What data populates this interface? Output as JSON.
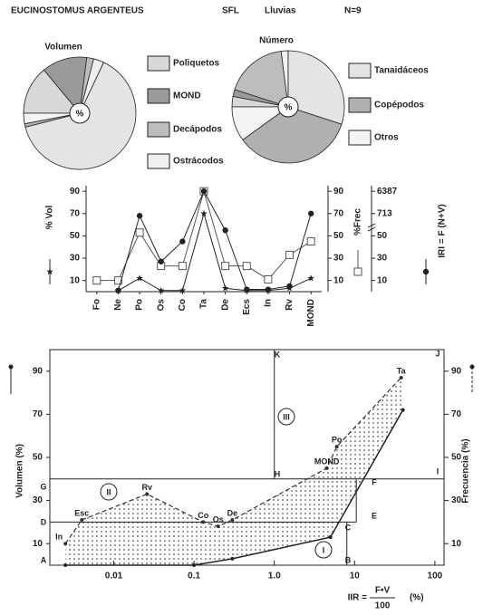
{
  "header": {
    "species": "EUCINOSTOMUS ARGENTEUS",
    "site": "SFL",
    "season": "Lluvias",
    "sample": "N=9"
  },
  "pie_legend": {
    "categories": [
      "Poliquetos",
      "MOND",
      "Decápodos",
      "Ostrácodos",
      "Tanaidáceos",
      "Copépodos",
      "Otros"
    ],
    "colors": [
      "#d8d8d8",
      "#9a9a9a",
      "#bdbdbd",
      "#efefef",
      "#e4e4e4",
      "#b0b0b0",
      "#f4f4f4"
    ]
  },
  "chart_data": [
    {
      "type": "pie",
      "title": "Volumen",
      "center_label": "%",
      "values": [
        14,
        13,
        2,
        3,
        64,
        1,
        3
      ]
    },
    {
      "type": "pie",
      "title": "Número",
      "center_label": "%",
      "values": [
        3,
        2,
        18,
        2,
        30,
        35,
        10
      ]
    },
    {
      "type": "line",
      "categories": [
        "Fo",
        "Ne",
        "Po",
        "Os",
        "Co",
        "Ta",
        "De",
        "Ecs",
        "In",
        "Rv",
        "MOND"
      ],
      "ylim": [
        0,
        95
      ],
      "yticks": [
        10,
        30,
        50,
        70,
        90
      ],
      "y2lim": [
        0,
        95
      ],
      "y2ticks": [
        10,
        30,
        50,
        70,
        90
      ],
      "y3ticks": [
        10,
        30,
        50,
        713,
        6387
      ],
      "series": [
        {
          "name": "% Vol",
          "marker": "star",
          "axis": "y",
          "color": "#222",
          "values": [
            null,
            1,
            12,
            1,
            1,
            70,
            3,
            1,
            1,
            3,
            12
          ]
        },
        {
          "name": "%Frec",
          "marker": "square",
          "axis": "y2",
          "color": "#555",
          "values": [
            10,
            10,
            53,
            23,
            23,
            90,
            23,
            23,
            11,
            33,
            45
          ]
        },
        {
          "name": "IRI = F (N+V)",
          "marker": "circle",
          "axis": "y3",
          "color": "#222",
          "values": [
            null,
            1,
            647,
            27,
            45,
            6387,
            216,
            2,
            2,
            5,
            713
          ]
        }
      ]
    },
    {
      "type": "scatter",
      "log_x": true,
      "ylabel": "Volumen (%)",
      "y2label": "Frecuencia (%)",
      "xlabel": {
        "prefix": "IIR =",
        "numerator": "F•V",
        "denominator": "100",
        "unit": "(%)"
      },
      "xlim": [
        0.0016,
        130
      ],
      "xticks": [
        0.01,
        0.1,
        {
          "value": 1,
          "label": "1.0"
        },
        10,
        100
      ],
      "ylim": [
        0,
        100
      ],
      "yticks": [
        10,
        30,
        50,
        70,
        90
      ],
      "y2lim": [
        0,
        100
      ],
      "y2ticks": [
        10,
        30,
        50,
        70,
        90
      ],
      "zone_letters": [
        "A",
        "B",
        "C",
        "D",
        "E",
        "F",
        "G",
        "H",
        "I",
        "J",
        "K"
      ],
      "zone_numerals": [
        "I",
        "II",
        "III"
      ],
      "zone_lines": [
        {
          "x": [
            0.0016,
            130
          ],
          "y": [
            40,
            40
          ]
        },
        {
          "x": [
            0.0016,
            10.5
          ],
          "y": [
            20,
            20
          ]
        },
        {
          "x": [
            1,
            1
          ],
          "y": [
            40,
            100
          ]
        },
        {
          "x": [
            8,
            8
          ],
          "y": [
            0,
            20
          ]
        },
        {
          "x": [
            10.5,
            10.5
          ],
          "y": [
            20,
            40
          ]
        }
      ],
      "series": [
        {
          "style": "dashed",
          "axis": "y",
          "color": "#333",
          "point_labels": [
            "In",
            "Esc",
            "Rv",
            "Co",
            "Os",
            "De",
            "MOND",
            "Po",
            "Ta"
          ],
          "x": [
            0.0025,
            0.004,
            0.026,
            0.13,
            0.2,
            0.3,
            4.5,
            6,
            38
          ],
          "values": [
            10,
            21,
            33,
            20,
            18,
            21,
            45,
            55,
            87
          ]
        },
        {
          "style": "solid",
          "axis": "y2",
          "color": "#222",
          "x": [
            0.0025,
            0.1,
            0.3,
            5,
            40
          ],
          "values": [
            0,
            0,
            3,
            13,
            72
          ]
        }
      ]
    }
  ]
}
